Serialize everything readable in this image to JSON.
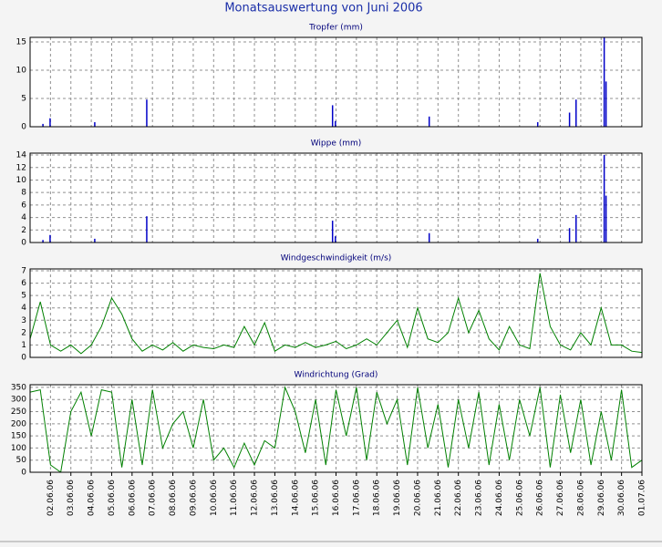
{
  "title": "Monatsauswertung von Juni 2006",
  "chart_data": [
    {
      "type": "bar",
      "title": "Tropfer (mm)",
      "color": "#0000c8",
      "xlim": [
        1,
        31
      ],
      "ylim": [
        0,
        15.8
      ],
      "yticks": [
        0,
        5,
        10,
        15
      ],
      "grid": true,
      "x": [
        1.63,
        1.98,
        4.17,
        6.72,
        15.83,
        15.97,
        20.57,
        25.89,
        27.45,
        27.77,
        29.15,
        29.24
      ],
      "values": [
        0.5,
        1.5,
        0.8,
        4.8,
        3.8,
        1,
        1.8,
        0.8,
        2.5,
        4.8,
        16,
        8
      ]
    },
    {
      "type": "bar",
      "title": "Wippe (mm)",
      "color": "#0000c8",
      "xlim": [
        1,
        31
      ],
      "ylim": [
        0,
        14.3
      ],
      "yticks": [
        0,
        2,
        4,
        6,
        8,
        10,
        12,
        14
      ],
      "grid": true,
      "x": [
        1.63,
        1.98,
        4.17,
        6.72,
        15.83,
        15.97,
        20.57,
        25.89,
        27.45,
        27.77,
        29.15,
        29.24
      ],
      "values": [
        0.4,
        1.2,
        0.6,
        4.2,
        3.5,
        1,
        1.5,
        0.6,
        2.3,
        4.4,
        14,
        7.5
      ]
    },
    {
      "type": "line",
      "title": "Windgeschwindigkeit (m/s)",
      "color": "#008000",
      "xlim": [
        1,
        31
      ],
      "ylim": [
        0,
        7.15
      ],
      "yticks": [
        0,
        1,
        2,
        3,
        4,
        5,
        6,
        7
      ],
      "grid": true,
      "x": [
        1,
        1.5,
        2,
        2.5,
        3,
        3.5,
        4,
        4.5,
        5,
        5.5,
        6,
        6.5,
        7,
        7.5,
        8,
        8.5,
        9,
        9.5,
        10,
        10.5,
        11,
        11.5,
        12,
        12.5,
        13,
        13.5,
        14,
        14.5,
        15,
        15.5,
        16,
        16.5,
        17,
        17.5,
        18,
        18.5,
        19,
        19.5,
        20,
        20.5,
        21,
        21.5,
        22,
        22.5,
        23,
        23.5,
        24,
        24.5,
        25,
        25.5,
        26,
        26.5,
        27,
        27.5,
        28,
        28.5,
        29,
        29.5,
        30,
        30.5,
        31
      ],
      "values": [
        1.5,
        4.5,
        1,
        0.5,
        1,
        0.3,
        1,
        2.5,
        4.8,
        3.5,
        1.5,
        0.5,
        1,
        0.6,
        1.2,
        0.5,
        1,
        0.8,
        0.7,
        1,
        0.8,
        2.5,
        1,
        2.8,
        0.5,
        1,
        0.8,
        1.2,
        0.8,
        1,
        1.3,
        0.7,
        1,
        1.5,
        1,
        2,
        3,
        0.8,
        4,
        1.5,
        1.2,
        2,
        4.8,
        2,
        3.8,
        1.5,
        0.6,
        2.5,
        1,
        0.7,
        6.8,
        2.5,
        1,
        0.6,
        2,
        1,
        4,
        1,
        1,
        0.5,
        0.4
      ]
    },
    {
      "type": "line",
      "title": "Windrichtung (Grad)",
      "color": "#008000",
      "xlim": [
        1,
        31
      ],
      "ylim": [
        0,
        361
      ],
      "yticks": [
        0,
        50,
        100,
        150,
        200,
        250,
        300,
        350
      ],
      "grid": true,
      "x": [
        1,
        1.5,
        2,
        2.5,
        3,
        3.5,
        4,
        4.5,
        5,
        5.5,
        6,
        6.5,
        7,
        7.5,
        8,
        8.5,
        9,
        9.5,
        10,
        10.5,
        11,
        11.5,
        12,
        12.5,
        13,
        13.5,
        14,
        14.5,
        15,
        15.5,
        16,
        16.5,
        17,
        17.5,
        18,
        18.5,
        19,
        19.5,
        20,
        20.5,
        21,
        21.5,
        22,
        22.5,
        23,
        23.5,
        24,
        24.5,
        25,
        25.5,
        26,
        26.5,
        27,
        27.5,
        28,
        28.5,
        29,
        29.5,
        30,
        30.5,
        31
      ],
      "values": [
        330,
        340,
        30,
        0,
        250,
        330,
        150,
        340,
        330,
        20,
        300,
        30,
        340,
        100,
        200,
        250,
        100,
        300,
        50,
        100,
        20,
        120,
        30,
        130,
        100,
        350,
        250,
        80,
        300,
        30,
        340,
        150,
        350,
        50,
        330,
        200,
        300,
        30,
        350,
        100,
        280,
        20,
        300,
        100,
        330,
        30,
        280,
        50,
        300,
        150,
        350,
        20,
        320,
        80,
        300,
        30,
        250,
        50,
        340,
        20,
        50
      ],
      "xticks": [
        {
          "value": 2,
          "label": "02.06.06"
        },
        {
          "value": 3,
          "label": "03.06.06"
        },
        {
          "value": 4,
          "label": "04.06.06"
        },
        {
          "value": 5,
          "label": "05.06.06"
        },
        {
          "value": 6,
          "label": "06.06.06"
        },
        {
          "value": 7,
          "label": "07.06.06"
        },
        {
          "value": 8,
          "label": "08.06.06"
        },
        {
          "value": 9,
          "label": "09.06.06"
        },
        {
          "value": 10,
          "label": "10.06.06"
        },
        {
          "value": 11,
          "label": "11.06.06"
        },
        {
          "value": 12,
          "label": "12.06.06"
        },
        {
          "value": 13,
          "label": "13.06.06"
        },
        {
          "value": 14,
          "label": "14.06.06"
        },
        {
          "value": 15,
          "label": "15.06.06"
        },
        {
          "value": 16,
          "label": "16.06.06"
        },
        {
          "value": 17,
          "label": "17.06.06"
        },
        {
          "value": 18,
          "label": "18.06.06"
        },
        {
          "value": 19,
          "label": "19.06.06"
        },
        {
          "value": 20,
          "label": "20.06.06"
        },
        {
          "value": 21,
          "label": "21.06.06"
        },
        {
          "value": 22,
          "label": "22.06.06"
        },
        {
          "value": 23,
          "label": "23.06.06"
        },
        {
          "value": 24,
          "label": "24.06.06"
        },
        {
          "value": 25,
          "label": "25.06.06"
        },
        {
          "value": 26,
          "label": "26.06.06"
        },
        {
          "value": 27,
          "label": "27.06.06"
        },
        {
          "value": 28,
          "label": "28.06.06"
        },
        {
          "value": 29,
          "label": "29.06.06"
        },
        {
          "value": 30,
          "label": "30.06.06"
        },
        {
          "value": 31,
          "label": "01.07.06"
        }
      ]
    }
  ]
}
